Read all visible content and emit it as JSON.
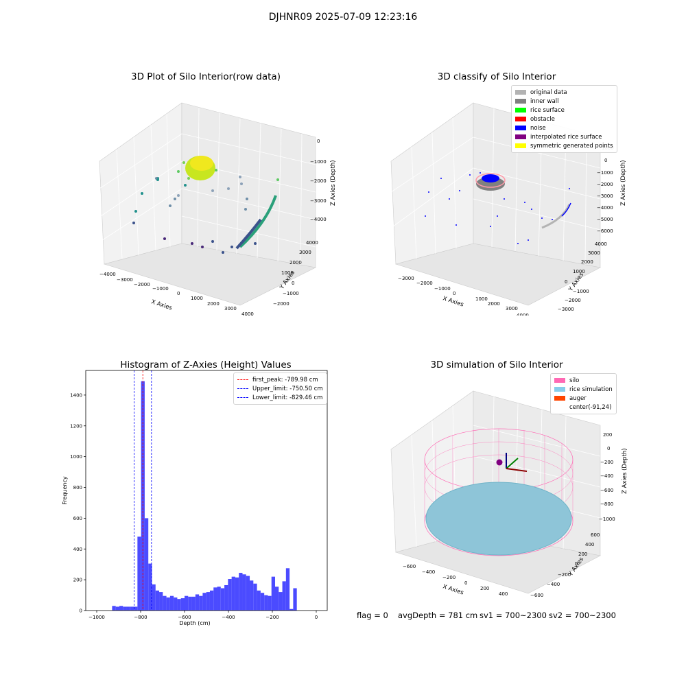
{
  "suptitle": "DJHNR09 2025-07-09 12:23:16",
  "panel_raw": {
    "title": "3D Plot of Silo Interior(row data)",
    "xlabel": "X Axies",
    "ylabel": "Y Axies",
    "zlabel": "Z Axies (Depth)",
    "xticks": [
      "−4000",
      "−3000",
      "−2000",
      "−1000",
      "0",
      "1000",
      "2000",
      "3000",
      "4000"
    ],
    "yticks": [
      "−2000",
      "−1000",
      "0",
      "1000",
      "2000",
      "3000",
      "4000"
    ],
    "zticks": [
      "0",
      "−1000",
      "−2000",
      "−3000",
      "−4000"
    ]
  },
  "panel_classify": {
    "title": "3D classify of Silo Interior",
    "xlabel": "X Axies",
    "ylabel": "Y Axies",
    "zlabel": "Z Axies (Depth)",
    "xticks": [
      "−3000",
      "−2000",
      "−1000",
      "0",
      "1000",
      "2000",
      "3000",
      "4000"
    ],
    "yticks": [
      "−3000",
      "−2000",
      "−1000",
      "0",
      "1000",
      "2000",
      "3000",
      "4000"
    ],
    "zticks": [
      "1000",
      "0",
      "−1000",
      "−2000",
      "−3000",
      "−4000",
      "−5000",
      "−6000"
    ],
    "legend": [
      {
        "label": "original data",
        "color": "#b3b3b3"
      },
      {
        "label": "inner wall",
        "color": "#808080"
      },
      {
        "label": "rice surface",
        "color": "#00ff00"
      },
      {
        "label": "obstacle",
        "color": "#ff0000"
      },
      {
        "label": "noise",
        "color": "#0000ff"
      },
      {
        "label": "interpolated rice surface",
        "color": "#800080"
      },
      {
        "label": "symmetric generated points",
        "color": "#ffff00"
      }
    ]
  },
  "panel_sim": {
    "title": "3D simulation of Silo Interior",
    "xlabel": "X Axies",
    "ylabel": "Y Axies",
    "zlabel": "Z Axies (Depth)",
    "xticks": [
      "−600",
      "−400",
      "−200",
      "0",
      "200",
      "400"
    ],
    "yticks": [
      "−600",
      "−400",
      "−200",
      "0",
      "200",
      "400",
      "600"
    ],
    "zticks": [
      "200",
      "0",
      "−200",
      "−400",
      "−600",
      "−800",
      "−1000"
    ],
    "legend": [
      {
        "label": "silo",
        "color": "#ff69b4"
      },
      {
        "label": "rice simulation",
        "color": "#87ceeb"
      },
      {
        "label": "auger",
        "color": "#ff4500"
      },
      {
        "label": "center(-91,24)",
        "color": ""
      }
    ]
  },
  "chart_data": [
    {
      "type": "bar",
      "title": "Histogram of Z-Axies (Height) Values",
      "xlabel": "Depth (cm)",
      "ylabel": "Frequency",
      "xlim": [
        -1050,
        50
      ],
      "ylim": [
        0,
        1560
      ],
      "xticks": [
        -1000,
        -800,
        -600,
        -400,
        -200,
        0
      ],
      "yticks": [
        0,
        200,
        400,
        600,
        800,
        1000,
        1200,
        1400
      ],
      "bin_width": 16.5,
      "bins": [
        [
          -930,
          30
        ],
        [
          -913.5,
          25
        ],
        [
          -897,
          30
        ],
        [
          -880.5,
          25
        ],
        [
          -864,
          25
        ],
        [
          -847.5,
          25
        ],
        [
          -831,
          25
        ],
        [
          -814.5,
          480
        ],
        [
          -798,
          1490
        ],
        [
          -781.5,
          600
        ],
        [
          -765,
          305
        ],
        [
          -748.5,
          170
        ],
        [
          -732,
          130
        ],
        [
          -715.5,
          120
        ],
        [
          -699,
          95
        ],
        [
          -682.5,
          85
        ],
        [
          -666,
          95
        ],
        [
          -649.5,
          85
        ],
        [
          -633,
          75
        ],
        [
          -616.5,
          80
        ],
        [
          -600,
          95
        ],
        [
          -583.5,
          90
        ],
        [
          -567,
          90
        ],
        [
          -550.5,
          105
        ],
        [
          -534,
          95
        ],
        [
          -517.5,
          115
        ],
        [
          -501,
          120
        ],
        [
          -484.5,
          130
        ],
        [
          -468,
          150
        ],
        [
          -451.5,
          155
        ],
        [
          -435,
          145
        ],
        [
          -418.5,
          165
        ],
        [
          -402,
          205
        ],
        [
          -385.5,
          220
        ],
        [
          -369,
          215
        ],
        [
          -352.5,
          245
        ],
        [
          -336,
          235
        ],
        [
          -319.5,
          225
        ],
        [
          -303,
          195
        ],
        [
          -286.5,
          175
        ],
        [
          -270,
          130
        ],
        [
          -253.5,
          115
        ],
        [
          -237,
          100
        ],
        [
          -220.5,
          95
        ],
        [
          -204,
          220
        ],
        [
          -187.5,
          155
        ],
        [
          -171,
          120
        ],
        [
          -154.5,
          190
        ],
        [
          -138,
          275
        ],
        [
          -121.5,
          10
        ],
        [
          -105,
          145
        ]
      ],
      "vlines": [
        {
          "label": "first_peak: -789.98 cm",
          "x": -789.98,
          "color": "#ff0000"
        },
        {
          "label": "Upper_limit: -750.50 cm",
          "x": -750.5,
          "color": "#0000ff"
        },
        {
          "label": "Lower_limit: -829.46 cm",
          "x": -829.46,
          "color": "#0000ff"
        }
      ],
      "bar_color": "#4b4bff"
    }
  ],
  "status": {
    "flag": "flag = 0",
    "avg": "avgDepth = 781 cm",
    "sv1": "sv1 = 700~2300",
    "sv2": "sv2 = 700~2300"
  }
}
